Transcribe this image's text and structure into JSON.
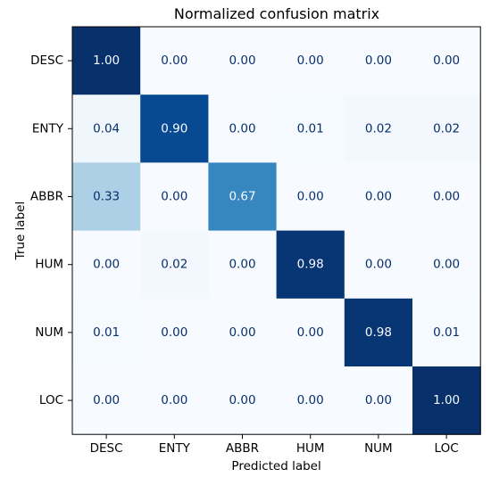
{
  "chart_data": {
    "type": "heatmap",
    "title": "Normalized confusion matrix",
    "xlabel": "Predicted label",
    "ylabel": "True label",
    "x_categories": [
      "DESC",
      "ENTY",
      "ABBR",
      "HUM",
      "NUM",
      "LOC"
    ],
    "y_categories": [
      "DESC",
      "ENTY",
      "ABBR",
      "HUM",
      "NUM",
      "LOC"
    ],
    "values": [
      [
        1.0,
        0.0,
        0.0,
        0.0,
        0.0,
        0.0
      ],
      [
        0.04,
        0.9,
        0.0,
        0.01,
        0.02,
        0.02
      ],
      [
        0.33,
        0.0,
        0.67,
        0.0,
        0.0,
        0.0
      ],
      [
        0.0,
        0.02,
        0.0,
        0.98,
        0.0,
        0.0
      ],
      [
        0.01,
        0.0,
        0.0,
        0.0,
        0.98,
        0.01
      ],
      [
        0.0,
        0.0,
        0.0,
        0.0,
        0.0,
        1.0
      ]
    ],
    "value_format": "0.00",
    "colormap": "Blues",
    "vmin": 0,
    "vmax": 1,
    "colors": {
      "low": "#f7fbff",
      "high": "#08306b",
      "text_dark": "#08306b",
      "text_light": "#f7fbff"
    }
  }
}
